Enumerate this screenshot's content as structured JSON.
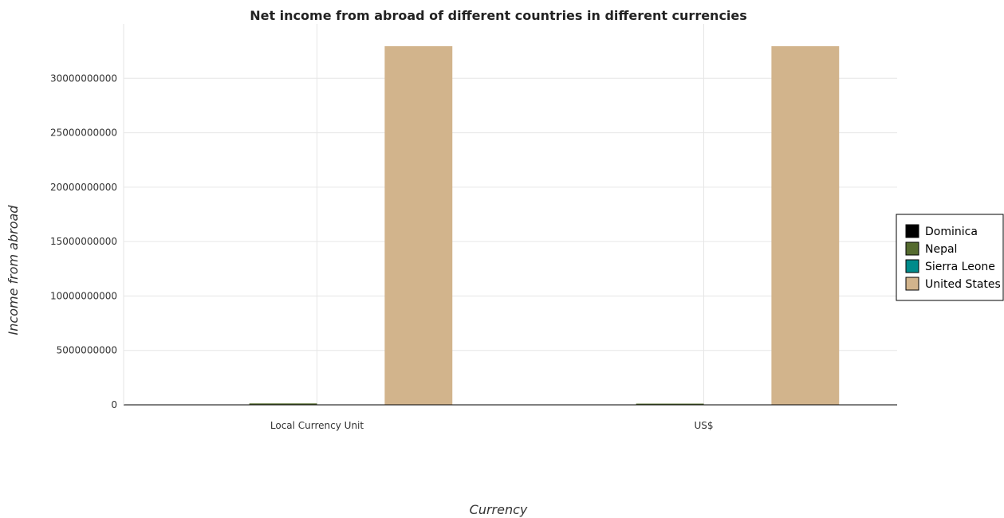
{
  "chart_data": {
    "type": "bar",
    "title": "Net income from abroad of different countries in different currencies",
    "xlabel": "Currency",
    "ylabel": "Income from abroad",
    "categories": [
      "Local Currency Unit",
      "US$"
    ],
    "series": [
      {
        "name": "Dominica",
        "color": "#000000",
        "values": [
          0,
          0
        ]
      },
      {
        "name": "Nepal",
        "color": "#556b2f",
        "values": [
          129000000,
          5000000
        ]
      },
      {
        "name": "Sierra Leone",
        "color": "#008b8b",
        "values": [
          0,
          0
        ]
      },
      {
        "name": "United States",
        "color": "#d2b48c",
        "values": [
          32950000000,
          32950000000
        ]
      }
    ],
    "ylim": [
      0,
      35000000000
    ],
    "yticks": [
      0,
      5000000000,
      10000000000,
      15000000000,
      20000000000,
      25000000000,
      30000000000
    ],
    "ytick_labels": [
      "0",
      "5000000000",
      "10000000000",
      "15000000000",
      "20000000000",
      "25000000000",
      "30000000000"
    ],
    "grid": true,
    "legend_position": "right"
  }
}
